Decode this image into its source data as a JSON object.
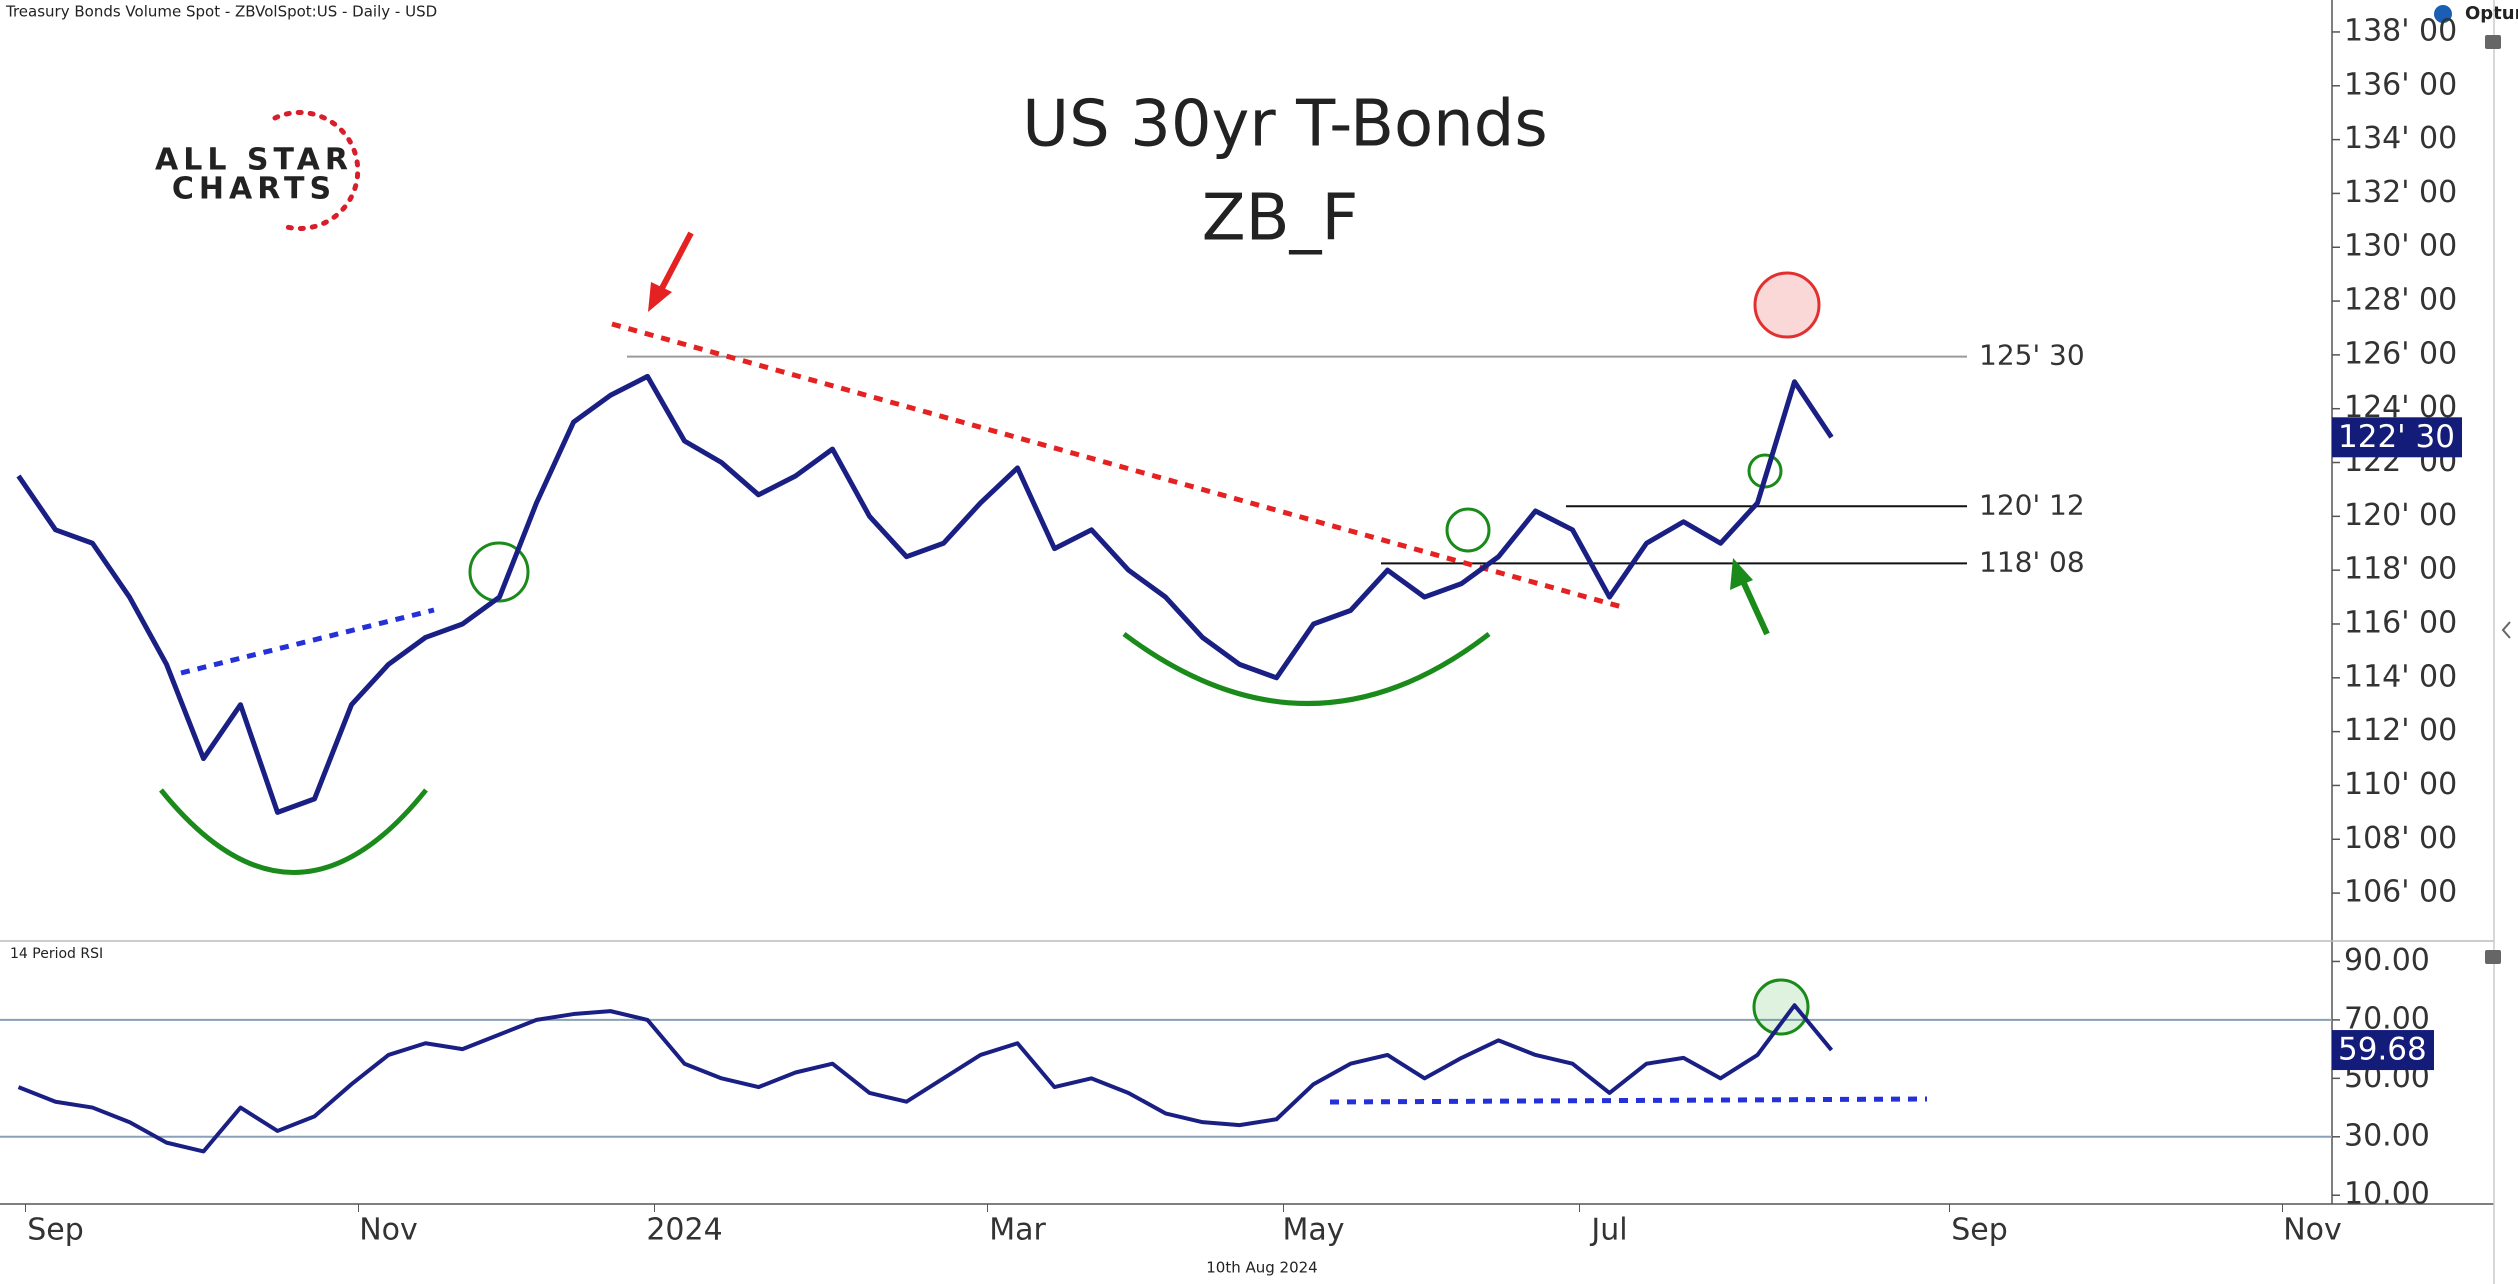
{
  "header": "Treasury Bonds Volume Spot - ZBVolSpot:US - Daily - USD",
  "footer": "10th Aug 2024",
  "logo": {
    "line1": "ALL STAR",
    "line2": "CHARTS",
    "vendor": "Optuma"
  },
  "chart_data": [
    {
      "type": "line",
      "title": "US 30yr T-Bonds",
      "subtitle": "ZB_F",
      "color": "#1a1f84",
      "values": [
        121.5,
        119.5,
        119,
        117,
        114.5,
        111,
        113,
        109,
        109.5,
        113,
        114.5,
        115.5,
        116,
        117,
        120.5,
        123.5,
        124.5,
        125.2,
        122.8,
        122,
        120.8,
        121.5,
        122.5,
        120,
        118.5,
        119,
        120.5,
        121.8,
        118.8,
        119.5,
        118,
        117,
        115.5,
        114.5,
        114,
        116,
        116.5,
        118,
        117,
        117.5,
        118.5,
        120.2,
        119.5,
        117,
        119,
        119.8,
        119,
        120.5,
        125,
        122.9375,
        null,
        null,
        null,
        null,
        null,
        null,
        null,
        null,
        null,
        null,
        null,
        null,
        null
      ],
      "value_labels": [
        null,
        null,
        null,
        null,
        null,
        null,
        null,
        null,
        null,
        null,
        null,
        null,
        null,
        null,
        null,
        null,
        null,
        null,
        null,
        null,
        null,
        null,
        null,
        null,
        null,
        null,
        null,
        null,
        null,
        null,
        null,
        null,
        null,
        null,
        null,
        null,
        null,
        null,
        null,
        null,
        null,
        null,
        null,
        null,
        null,
        null,
        null,
        null,
        null,
        "122' 30",
        null,
        null,
        null,
        null,
        null,
        null,
        null,
        null,
        null,
        null,
        null,
        null,
        null
      ],
      "ylim": [
        105,
        138.5
      ],
      "yticks": [
        {
          "value": 106,
          "label": "106' 00"
        },
        {
          "value": 108,
          "label": "108' 00"
        },
        {
          "value": 110,
          "label": "110' 00"
        },
        {
          "value": 112,
          "label": "112' 00"
        },
        {
          "value": 114,
          "label": "114' 00"
        },
        {
          "value": 116,
          "label": "116' 00"
        },
        {
          "value": 118,
          "label": "118' 00"
        },
        {
          "value": 120,
          "label": "120' 00"
        },
        {
          "value": 122,
          "label": "122' 00"
        },
        {
          "value": 124,
          "label": "124' 00"
        },
        {
          "value": 126,
          "label": "126' 00"
        },
        {
          "value": 128,
          "label": "128' 00"
        },
        {
          "value": 130,
          "label": "130' 00"
        },
        {
          "value": 132,
          "label": "132' 00"
        },
        {
          "value": 134,
          "label": "134' 00"
        },
        {
          "value": 136,
          "label": "136' 00"
        },
        {
          "value": 138,
          "label": "138' 00"
        }
      ],
      "levels": [
        {
          "value": 125.9375,
          "label": "125' 30"
        },
        {
          "value": 120.375,
          "label": "120' 12"
        },
        {
          "value": 118.25,
          "label": "118' 08"
        }
      ]
    },
    {
      "type": "line",
      "title": "14 Period RSI",
      "color": "#1a1f84",
      "categories": [
        null,
        "Sep",
        null,
        null,
        null,
        null,
        null,
        null,
        null,
        null,
        "Nov",
        null,
        null,
        null,
        null,
        null,
        null,
        null,
        "2024",
        null,
        null,
        null,
        null,
        null,
        null,
        null,
        null,
        "Mar",
        null,
        null,
        null,
        null,
        null,
        null,
        null,
        "May",
        null,
        null,
        null,
        null,
        null,
        null,
        null,
        "Jul",
        null,
        null,
        null,
        null,
        null,
        null,
        null,
        null,
        null,
        "Sep",
        null,
        null,
        null,
        null,
        null,
        null,
        null,
        null,
        "Nov"
      ],
      "values": [
        47,
        42,
        40,
        35,
        28,
        25,
        40,
        32,
        37,
        48,
        58,
        62,
        60,
        65,
        70,
        72,
        73,
        70,
        55,
        50,
        47,
        52,
        55,
        45,
        42,
        50,
        58,
        62,
        47,
        50,
        45,
        38,
        35,
        34,
        36,
        48,
        55,
        58,
        50,
        57,
        63,
        58,
        55,
        45,
        55,
        57,
        50,
        58,
        75,
        59.68,
        null,
        null,
        null,
        null,
        null,
        null,
        null,
        null,
        null,
        null,
        null,
        null,
        null
      ],
      "value_labels": [
        null,
        null,
        null,
        null,
        null,
        null,
        null,
        null,
        null,
        null,
        null,
        null,
        null,
        null,
        null,
        null,
        null,
        null,
        null,
        null,
        null,
        null,
        null,
        null,
        null,
        null,
        null,
        null,
        null,
        null,
        null,
        null,
        null,
        null,
        null,
        null,
        null,
        null,
        null,
        null,
        null,
        null,
        null,
        null,
        null,
        null,
        null,
        null,
        null,
        "59.68",
        null,
        null,
        null,
        null,
        null,
        null,
        null,
        null,
        null,
        null,
        null,
        null,
        null
      ],
      "ylim": [
        7,
        97
      ],
      "yticks": [
        {
          "value": 10,
          "label": "10.00"
        },
        {
          "value": 30,
          "label": "30.00"
        },
        {
          "value": 50,
          "label": "50.00"
        },
        {
          "value": 70,
          "label": "70.00"
        },
        {
          "value": 90,
          "label": "90.00"
        }
      ],
      "levels": [
        70,
        30
      ]
    }
  ]
}
